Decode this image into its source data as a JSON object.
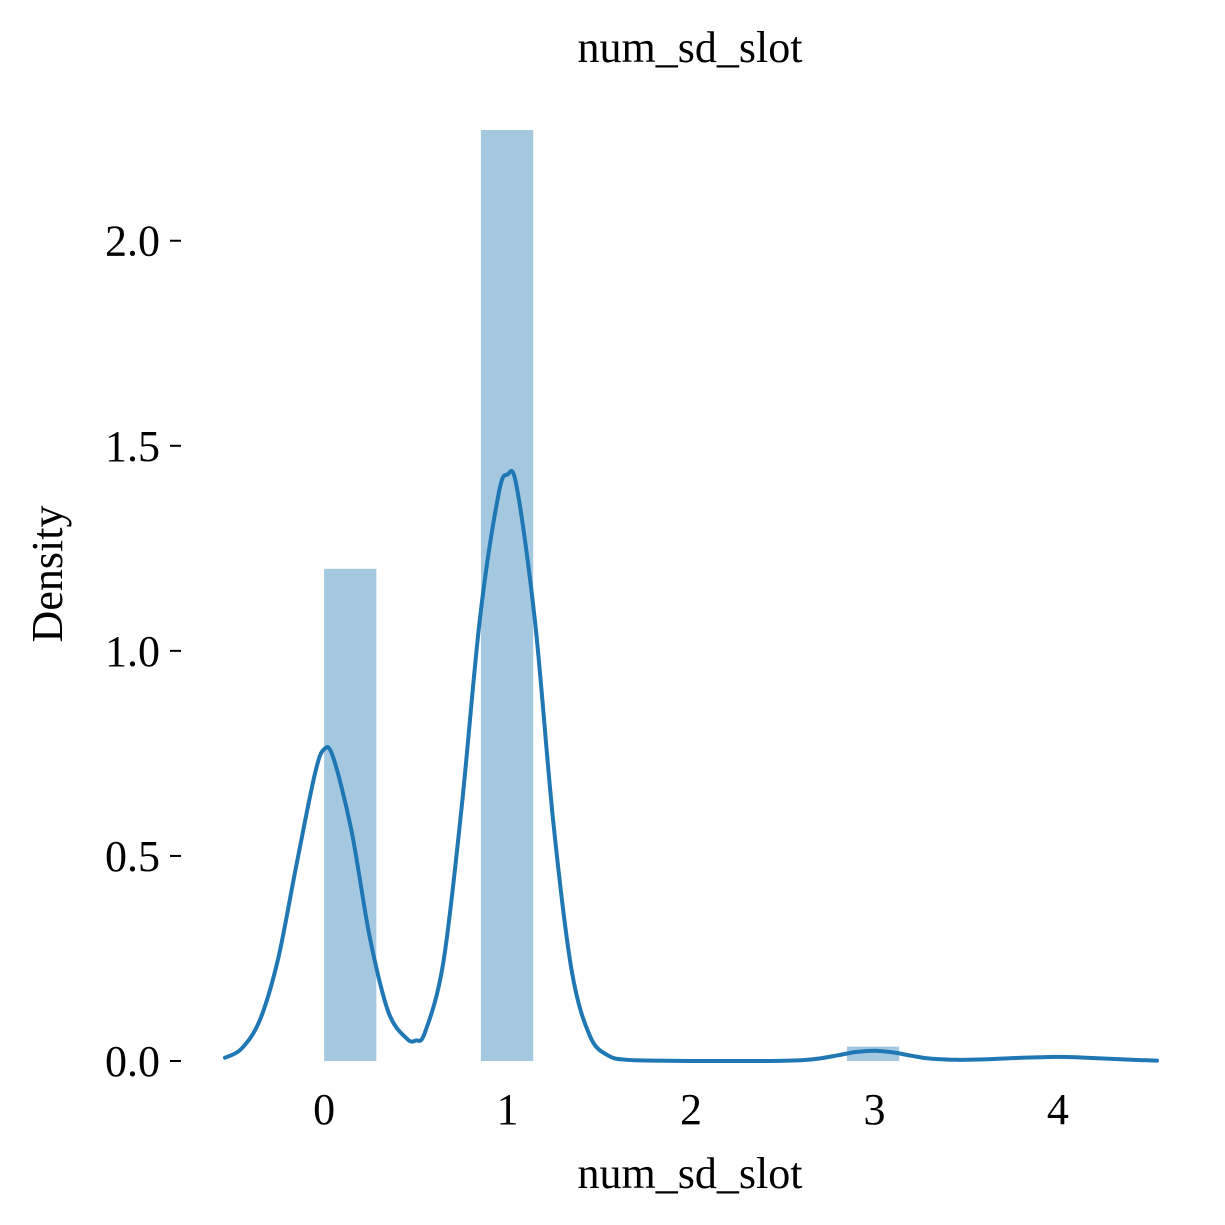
{
  "chart_data": {
    "type": "bar",
    "title": "num_sd_slot",
    "xlabel": "num_sd_slot",
    "ylabel": "Density",
    "xlim": [
      -0.54,
      4.54
    ],
    "ylim": [
      0,
      2.27
    ],
    "xticks": [
      0,
      1,
      2,
      3,
      4
    ],
    "yticks": [
      0.0,
      0.5,
      1.0,
      1.5,
      2.0
    ],
    "xtick_labels": [
      "0",
      "1",
      "2",
      "3",
      "4"
    ],
    "ytick_labels": [
      "0.0",
      "0.5",
      "1.0",
      "1.5",
      "2.0"
    ],
    "grid": false,
    "bar_color": "#a5c8e1",
    "line_color": "#1f77b4",
    "histogram": [
      {
        "x0": 0.0,
        "x1": 0.285,
        "density": 1.2
      },
      {
        "x0": 0.855,
        "x1": 1.14,
        "density": 2.27
      },
      {
        "x0": 2.85,
        "x1": 3.135,
        "density": 0.035
      }
    ],
    "kde": {
      "x": [
        -0.54,
        -0.45,
        -0.35,
        -0.25,
        -0.15,
        -0.05,
        0.0,
        0.05,
        0.15,
        0.25,
        0.35,
        0.45,
        0.5,
        0.55,
        0.65,
        0.75,
        0.85,
        0.95,
        1.0,
        1.05,
        1.15,
        1.25,
        1.35,
        1.45,
        1.55,
        1.65,
        1.8,
        2.0,
        2.2,
        2.4,
        2.6,
        2.7,
        2.8,
        2.9,
        3.0,
        3.1,
        3.2,
        3.3,
        3.45,
        3.6,
        3.75,
        3.9,
        4.0,
        4.1,
        4.25,
        4.4,
        4.54
      ],
      "y": [
        0.008,
        0.03,
        0.1,
        0.25,
        0.48,
        0.7,
        0.76,
        0.74,
        0.56,
        0.3,
        0.12,
        0.055,
        0.05,
        0.07,
        0.24,
        0.62,
        1.08,
        1.38,
        1.43,
        1.4,
        1.07,
        0.58,
        0.22,
        0.06,
        0.013,
        0.003,
        0.001,
        0.0,
        0.0,
        0.0,
        0.002,
        0.006,
        0.014,
        0.022,
        0.025,
        0.021,
        0.013,
        0.006,
        0.003,
        0.004,
        0.007,
        0.009,
        0.01,
        0.009,
        0.006,
        0.003,
        0.001
      ]
    }
  }
}
